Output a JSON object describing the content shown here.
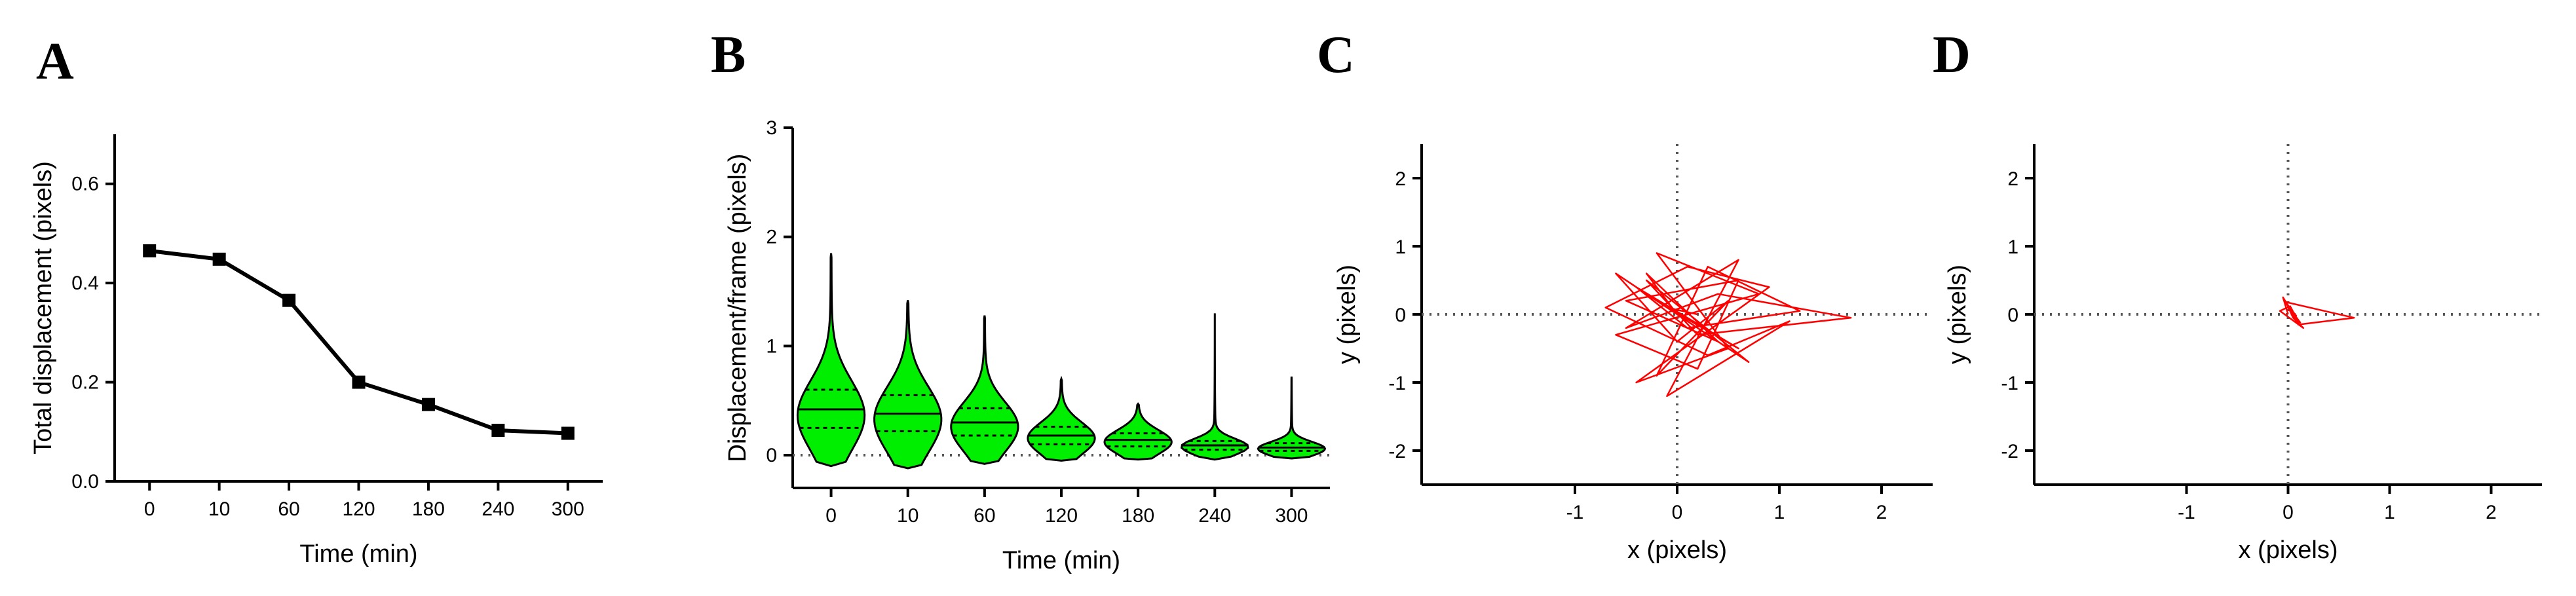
{
  "chart_data": [
    {
      "panel": "A",
      "type": "line",
      "categories": [
        "0",
        "10",
        "60",
        "120",
        "180",
        "240",
        "300"
      ],
      "values": [
        0.465,
        0.448,
        0.365,
        0.2,
        0.155,
        0.103,
        0.097
      ],
      "xlabel": "Time (min)",
      "ylabel": "Total displacement (pixels)",
      "ylim": [
        0,
        0.7
      ],
      "yticks": [
        "0.0",
        "0.2",
        "0.4",
        "0.6"
      ],
      "ytick_values": [
        0,
        0.2,
        0.4,
        0.6
      ],
      "color": "#000000"
    },
    {
      "panel": "B",
      "type": "violin",
      "categories": [
        "0",
        "10",
        "60",
        "120",
        "180",
        "240",
        "300"
      ],
      "series": [
        {
          "name": "0",
          "min": -0.1,
          "max": 1.85,
          "q1": 0.25,
          "median": 0.42,
          "q3": 0.6
        },
        {
          "name": "10",
          "min": -0.12,
          "max": 1.42,
          "q1": 0.22,
          "median": 0.38,
          "q3": 0.55
        },
        {
          "name": "60",
          "min": -0.08,
          "max": 1.28,
          "q1": 0.18,
          "median": 0.3,
          "q3": 0.43
        },
        {
          "name": "120",
          "min": -0.05,
          "max": 0.7,
          "q1": 0.1,
          "median": 0.18,
          "q3": 0.26
        },
        {
          "name": "180",
          "min": -0.04,
          "max": 0.47,
          "q1": 0.08,
          "median": 0.14,
          "q3": 0.2
        },
        {
          "name": "240",
          "min": -0.04,
          "max": 1.3,
          "q1": 0.05,
          "median": 0.09,
          "q3": 0.13
        },
        {
          "name": "300",
          "min": -0.03,
          "max": 0.72,
          "q1": 0.04,
          "median": 0.07,
          "q3": 0.11
        }
      ],
      "xlabel": "Time (min)",
      "ylabel": "Displacement/frame (pixels)",
      "ylim": [
        -0.3,
        3
      ],
      "yticks": [
        "0",
        "1",
        "2",
        "3"
      ],
      "ytick_values": [
        0,
        1,
        2,
        3
      ],
      "fill": "#00ee00"
    },
    {
      "panel": "C",
      "type": "trajectory",
      "x": [
        0.0,
        -0.3,
        0.4,
        -0.5,
        0.6,
        0.2,
        -0.6,
        0.8,
        -0.2,
        0.5,
        -0.4,
        0.9,
        0.1,
        -0.7,
        0.3,
        1.1,
        -0.1,
        0.6,
        -0.5,
        0.4,
        1.7,
        0.2,
        -0.3,
        0.7,
        -0.6,
        0.0,
        0.5,
        -0.2,
        0.3,
        1.2,
        0.1,
        -0.4,
        0.6,
        -0.1,
        0.2
      ],
      "y": [
        0.0,
        0.6,
        -0.4,
        0.2,
        0.5,
        -0.8,
        -0.3,
        0.3,
        0.9,
        -0.5,
        -1.0,
        0.4,
        0.7,
        0.1,
        -0.6,
        -0.1,
        -1.2,
        0.8,
        -0.2,
        0.3,
        -0.05,
        -0.3,
        0.5,
        -0.7,
        0.6,
        -0.4,
        0.2,
        -0.9,
        0.7,
        0.05,
        -0.2,
        0.4,
        -0.5,
        0.1,
        0.0
      ],
      "xlabel": "x (pixels)",
      "ylabel": "y (pixels)",
      "xlim": [
        -2.5,
        2.5
      ],
      "ylim": [
        -2.5,
        2.5
      ],
      "xticks": [
        "-1",
        "0",
        "1",
        "2"
      ],
      "xtick_values": [
        -1,
        0,
        1,
        2
      ],
      "yticks": [
        "-2",
        "-1",
        "0",
        "1",
        "2"
      ],
      "ytick_values": [
        -2,
        -1,
        0,
        1,
        2
      ],
      "color": "#ff0000"
    },
    {
      "panel": "D",
      "type": "trajectory",
      "x": [
        0.0,
        -0.05,
        0.1,
        0.02,
        -0.08,
        0.15,
        0.05,
        -0.02,
        0.65,
        0.1,
        0.0,
        0.08,
        -0.04,
        0.12,
        0.03
      ],
      "y": [
        0.0,
        0.25,
        -0.1,
        0.12,
        0.05,
        -0.2,
        -0.05,
        0.18,
        -0.05,
        -0.15,
        0.1,
        -0.02,
        0.2,
        -0.12,
        0.0
      ],
      "xlabel": "x (pixels)",
      "ylabel": "y (pixels)",
      "xlim": [
        -2.5,
        2.5
      ],
      "ylim": [
        -2.5,
        2.5
      ],
      "xticks": [
        "-1",
        "0",
        "1",
        "2"
      ],
      "xtick_values": [
        -1,
        0,
        1,
        2
      ],
      "yticks": [
        "-2",
        "-1",
        "0",
        "1",
        "2"
      ],
      "ytick_values": [
        -2,
        -1,
        0,
        1,
        2
      ],
      "color": "#ff0000"
    }
  ]
}
